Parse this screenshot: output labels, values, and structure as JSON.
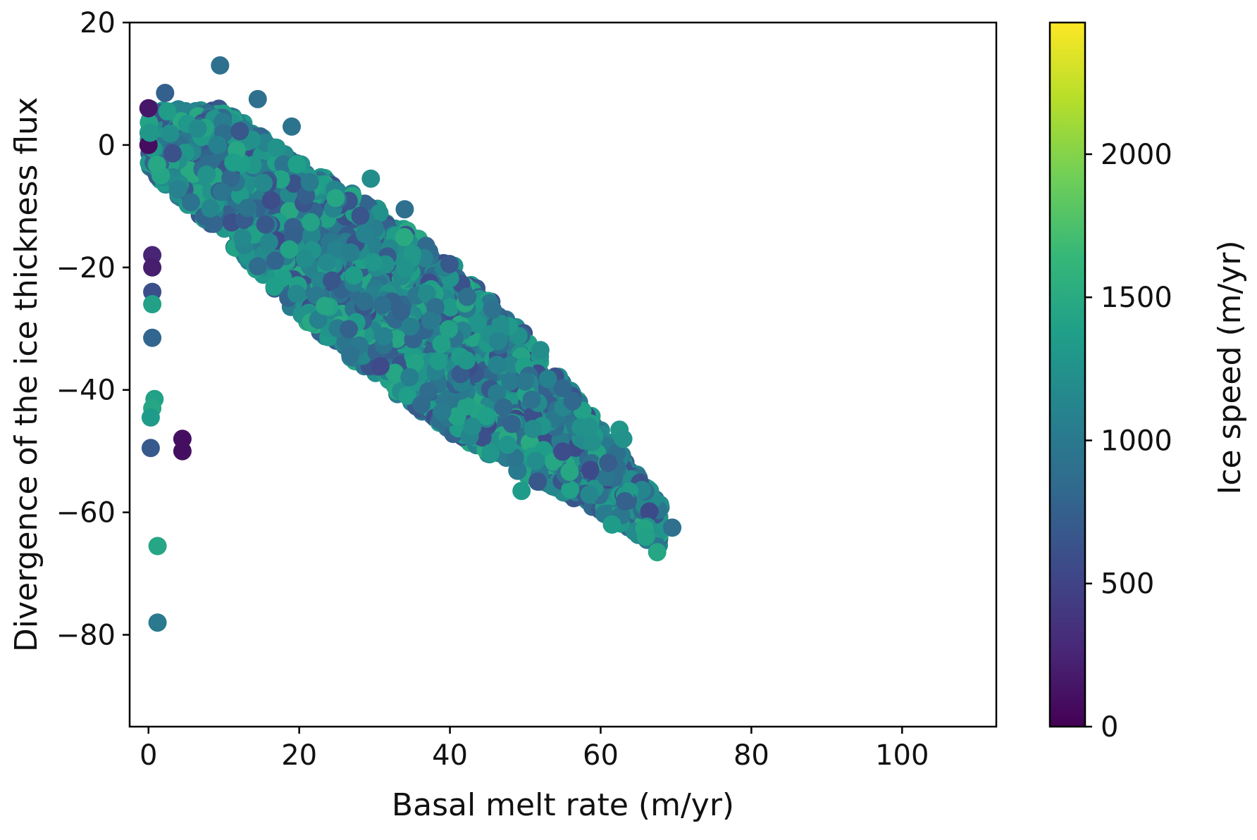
{
  "chart_data": {
    "type": "scatter",
    "title": "",
    "xlabel": "Basal melt rate (m/yr)",
    "ylabel": "Divergence of the ice thickness flux",
    "xlim": [
      -2.5,
      112.5
    ],
    "ylim": [
      -95,
      20
    ],
    "xticks": [
      0,
      20,
      40,
      60,
      80,
      100
    ],
    "yticks": [
      20,
      0,
      -20,
      -40,
      -60,
      -80
    ],
    "colorbar": {
      "label": "Ice speed (m/yr)",
      "range": [
        0,
        2460
      ],
      "ticks": [
        0,
        500,
        1000,
        1500,
        2000
      ],
      "colormap": "viridis",
      "colormap_stops": [
        "#440154",
        "#482878",
        "#3e4989",
        "#31688e",
        "#26828e",
        "#1f9e89",
        "#35b779",
        "#6ece58",
        "#b5de2b",
        "#fde725"
      ]
    },
    "cloud_trend": {
      "upper_edge": [
        [
          0,
          6
        ],
        [
          10,
          6
        ],
        [
          20,
          -3
        ],
        [
          30,
          -10
        ],
        [
          40,
          -19
        ],
        [
          50,
          -31
        ],
        [
          60,
          -46
        ],
        [
          70,
          -62
        ]
      ],
      "lower_edge": [
        [
          0,
          -4
        ],
        [
          10,
          -15
        ],
        [
          20,
          -28
        ],
        [
          30,
          -38
        ],
        [
          40,
          -47
        ],
        [
          50,
          -54
        ],
        [
          60,
          -60
        ],
        [
          68,
          -66
        ]
      ],
      "typical_speed": [
        900,
        1500
      ]
    },
    "points": [
      {
        "x": 9.5,
        "y": 13,
        "c": 900
      },
      {
        "x": 14.5,
        "y": 7.5,
        "c": 900
      },
      {
        "x": 19,
        "y": 3,
        "c": 950
      },
      {
        "x": 2.2,
        "y": 8.5,
        "c": 750
      },
      {
        "x": 0,
        "y": 6,
        "c": 150
      },
      {
        "x": 0,
        "y": 0,
        "c": 80
      },
      {
        "x": 0.2,
        "y": 2,
        "c": 1300
      },
      {
        "x": 0.5,
        "y": -18,
        "c": 250
      },
      {
        "x": 0.5,
        "y": -20,
        "c": 200
      },
      {
        "x": 0.5,
        "y": -24,
        "c": 600
      },
      {
        "x": 0.5,
        "y": -26,
        "c": 1400
      },
      {
        "x": 0.5,
        "y": -31.5,
        "c": 800
      },
      {
        "x": 0.8,
        "y": -41.5,
        "c": 1400
      },
      {
        "x": 0.5,
        "y": -43,
        "c": 1450
      },
      {
        "x": 0.3,
        "y": -44.5,
        "c": 1350
      },
      {
        "x": 0.3,
        "y": -49.5,
        "c": 700
      },
      {
        "x": 4.5,
        "y": -48,
        "c": 100
      },
      {
        "x": 4.5,
        "y": -50,
        "c": 100
      },
      {
        "x": 1.2,
        "y": -65.5,
        "c": 1450
      },
      {
        "x": 1.2,
        "y": -78,
        "c": 1000
      },
      {
        "x": 34,
        "y": -10.5,
        "c": 900
      },
      {
        "x": 29.5,
        "y": -5.5,
        "c": 1200
      },
      {
        "x": 69.5,
        "y": -62.5,
        "c": 900
      },
      {
        "x": 67.5,
        "y": -66.5,
        "c": 1450
      },
      {
        "x": 66,
        "y": -64,
        "c": 1400
      },
      {
        "x": 62.5,
        "y": -46.5,
        "c": 1300
      },
      {
        "x": 63,
        "y": -48,
        "c": 1250
      },
      {
        "x": 58.5,
        "y": -46,
        "c": 1250
      },
      {
        "x": 52,
        "y": -33.5,
        "c": 1200
      },
      {
        "x": 49.5,
        "y": -56.5,
        "c": 1350
      },
      {
        "x": 61.5,
        "y": -62,
        "c": 1350
      }
    ]
  }
}
